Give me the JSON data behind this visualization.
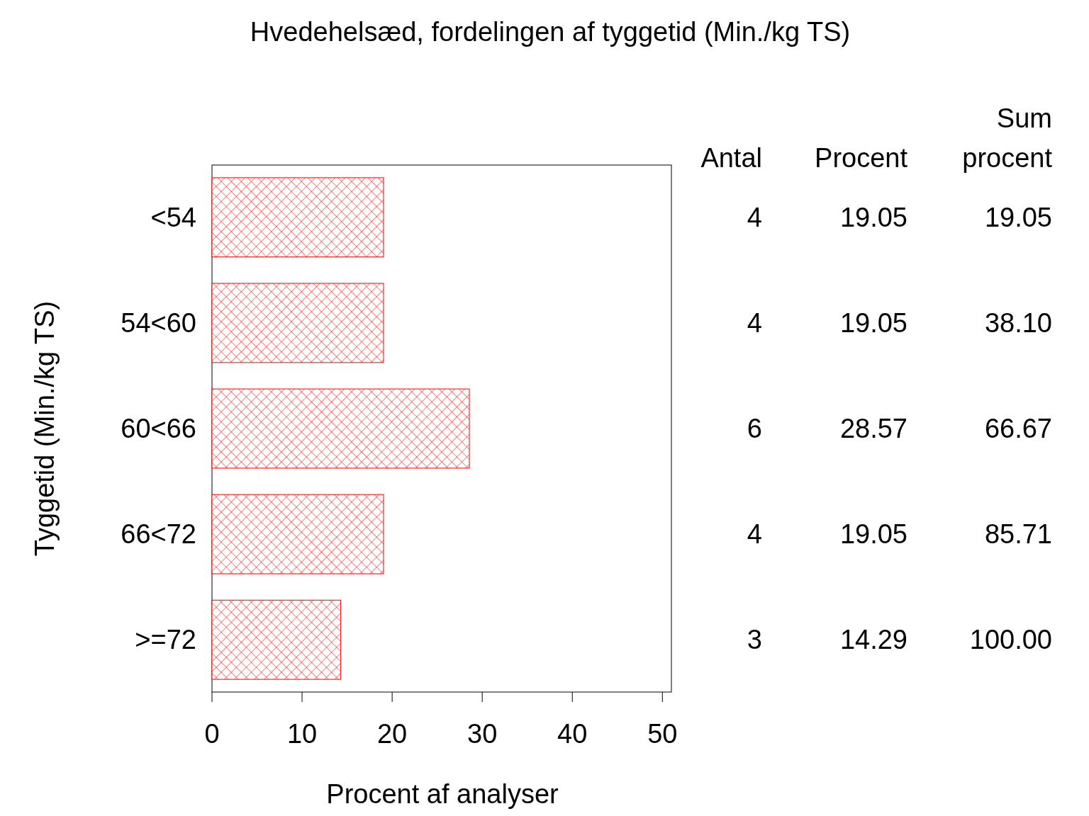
{
  "chart_data": {
    "type": "bar",
    "orientation": "horizontal",
    "title": "Hvedehelsæd, fordelingen af tyggetid (Min./kg TS)",
    "xlabel": "Procent af analyser",
    "ylabel": "Tyggetid (Min./kg TS)",
    "categories": [
      "<54",
      "54<60",
      "60<66",
      "66<72",
      ">=72"
    ],
    "values": [
      19.05,
      19.05,
      28.57,
      19.05,
      14.29
    ],
    "color": "#ff0000",
    "xlim": [
      0,
      51
    ],
    "xticks": [
      0,
      10,
      20,
      30,
      40,
      50
    ],
    "grid": false,
    "data_labels": true,
    "annotations": [
      "Antal",
      "Procent",
      "Sum procent",
      "4",
      "19.05",
      "4",
      "38.10",
      "6",
      "66.67",
      "4",
      "85.71",
      "3",
      "100.00"
    ]
  }
}
